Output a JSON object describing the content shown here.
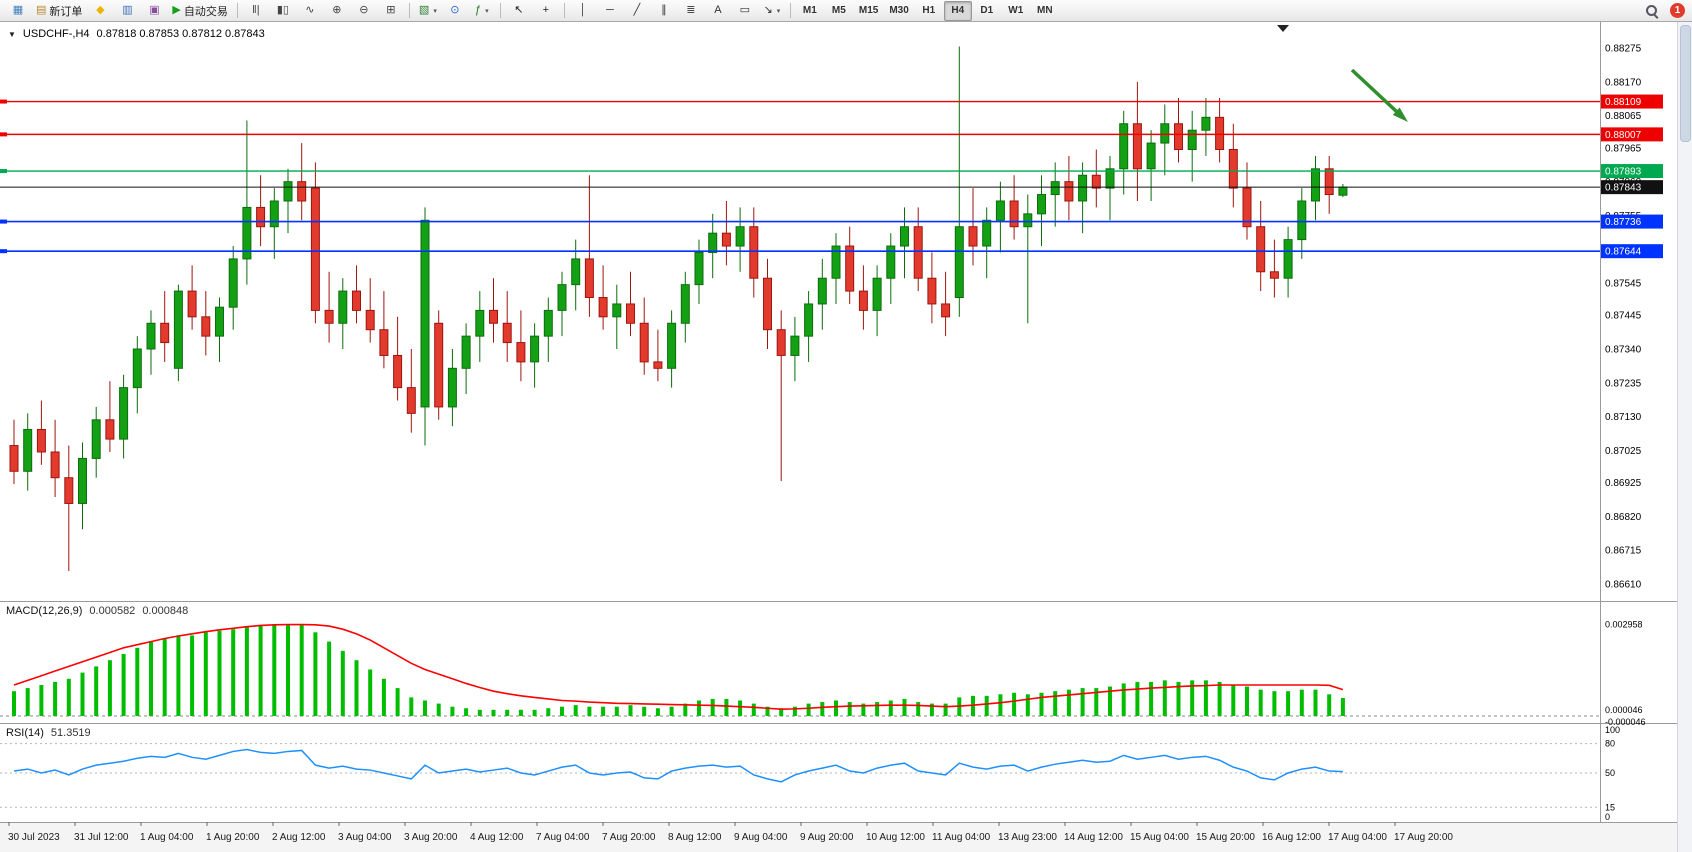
{
  "toolbar": {
    "groups": [
      {
        "items": [
          {
            "name": "new-chart",
            "glyph": "▦",
            "color": "#3f7fbf"
          },
          {
            "name": "new-order",
            "glyph": "▤",
            "color": "#b58a2f",
            "label": "新订单"
          },
          {
            "name": "metaeditor",
            "glyph": "◆",
            "color": "#eeb207"
          },
          {
            "name": "profiles",
            "glyph": "▥",
            "color": "#3b6fb5"
          },
          {
            "name": "history",
            "glyph": "▣",
            "color": "#8a4d9e"
          },
          {
            "name": "autotrading",
            "glyph": "▶",
            "color": "#18a018",
            "label": "自动交易"
          }
        ]
      },
      {
        "items": [
          {
            "name": "bars-chart",
            "glyph": "‖|",
            "color": "#444"
          },
          {
            "name": "candlestick-chart",
            "glyph": "▮▯",
            "color": "#444"
          },
          {
            "name": "line-chart",
            "glyph": "∿",
            "color": "#444"
          },
          {
            "name": "zoom-in",
            "glyph": "⊕",
            "color": "#444"
          },
          {
            "name": "zoom-out",
            "glyph": "⊖",
            "color": "#444"
          },
          {
            "name": "tile-windows",
            "glyph": "⊞",
            "color": "#444"
          }
        ]
      },
      {
        "items": [
          {
            "name": "new-window",
            "glyph": "▧",
            "color": "#2e7d32",
            "caret": true
          },
          {
            "name": "clock",
            "glyph": "⊙",
            "color": "#2266cc"
          },
          {
            "name": "indicators",
            "glyph": "ƒ",
            "color": "#1a7a1a",
            "caret": true
          }
        ]
      },
      {
        "items": [
          {
            "name": "cursor",
            "glyph": "↖",
            "color": "#222"
          },
          {
            "name": "crosshair",
            "glyph": "+",
            "color": "#222"
          }
        ]
      },
      {
        "items": [
          {
            "name": "vertical-line",
            "glyph": "│",
            "color": "#333"
          },
          {
            "name": "horizontal-line",
            "glyph": "─",
            "color": "#333"
          },
          {
            "name": "trendline",
            "glyph": "╱",
            "color": "#333"
          },
          {
            "name": "channel",
            "glyph": "∥",
            "color": "#333"
          },
          {
            "name": "fibonacci",
            "glyph": "≣",
            "color": "#333"
          },
          {
            "name": "text",
            "glyph": "A",
            "color": "#333"
          },
          {
            "name": "label",
            "glyph": "▭",
            "color": "#333"
          },
          {
            "name": "arrows",
            "glyph": "↘",
            "color": "#333",
            "caret": true
          }
        ]
      }
    ],
    "timeframes": [
      "M1",
      "M5",
      "M15",
      "M30",
      "H1",
      "H4",
      "D1",
      "W1",
      "MN"
    ],
    "active_timeframe": "H4",
    "notification_count": "1"
  },
  "chart": {
    "collapse_glyph": "▼",
    "symbol_label": "USDCHF-,H4",
    "ohlc": "0.87818 0.87853 0.87812 0.87843",
    "price_labels": [
      "0.88275",
      "0.88170",
      "0.88065",
      "0.87965",
      "0.87860",
      "0.87755",
      "0.87650",
      "0.87545",
      "0.87445",
      "0.87340",
      "0.87235",
      "0.87130",
      "0.87025",
      "0.86925",
      "0.86820",
      "0.86715",
      "0.86610"
    ],
    "time_labels": [
      "30 Jul 2023",
      "31 Jul 12:00",
      "1 Aug 04:00",
      "1 Aug 20:00",
      "2 Aug 12:00",
      "3 Aug 04:00",
      "3 Aug 20:00",
      "4 Aug 12:00",
      "7 Aug 04:00",
      "7 Aug 20:00",
      "8 Aug 12:00",
      "9 Aug 04:00",
      "9 Aug 20:00",
      "10 Aug 12:00",
      "11 Aug 04:00",
      "13 Aug 23:00",
      "14 Aug 12:00",
      "15 Aug 04:00",
      "15 Aug 20:00",
      "16 Aug 12:00",
      "17 Aug 04:00",
      "17 Aug 20:00"
    ],
    "colors": {
      "bull": "#14a014",
      "bull_border": "#0b6e0b",
      "bear": "#e23b2e",
      "bear_border": "#9e150f",
      "macd_histogram": "#00bd00",
      "macd_signal": "#ff0000",
      "rsi_line": "#1e90ff",
      "arrow": "#2f8f2f",
      "current_price": "#111111"
    }
  },
  "macd": {
    "label": "MACD(12,26,9)",
    "value_macd": "0.000582",
    "value_signal": "0.000848",
    "axis_labels": [
      "0.002958",
      "0.000046",
      "-0.000046"
    ]
  },
  "rsi": {
    "label": "RSI(14)",
    "value": "51.3519",
    "axis_labels": [
      "100",
      "80",
      "50",
      "15",
      "0"
    ],
    "levels": [
      80,
      50,
      15
    ]
  },
  "chart_data": {
    "type": "candlestick",
    "symbol": "USDCHF",
    "timeframe": "H4",
    "title": "USDCHF-,H4",
    "ohlc_current": {
      "open": 0.87818,
      "high": 0.87853,
      "low": 0.87812,
      "close": 0.87843
    },
    "price_range": [
      0.8656,
      0.8835
    ],
    "note": "candle values are price*10000, order [open,high,low,close]",
    "candles": [
      [
        8704,
        8712,
        8692,
        8696
      ],
      [
        8696,
        8714,
        8690,
        8709
      ],
      [
        8709,
        8718,
        8698,
        8702
      ],
      [
        8702,
        8712,
        8688,
        8694
      ],
      [
        8694,
        8704,
        8665,
        8686
      ],
      [
        8686,
        8705,
        8678,
        8700
      ],
      [
        8700,
        8716,
        8694,
        8712
      ],
      [
        8712,
        8724,
        8702,
        8706
      ],
      [
        8706,
        8726,
        8700,
        8722
      ],
      [
        8722,
        8738,
        8714,
        8734
      ],
      [
        8734,
        8746,
        8726,
        8742
      ],
      [
        8742,
        8752,
        8730,
        8736
      ],
      [
        8728,
        8754,
        8724,
        8752
      ],
      [
        8752,
        8760,
        8740,
        8744
      ],
      [
        8744,
        8752,
        8732,
        8738
      ],
      [
        8738,
        8750,
        8730,
        8747
      ],
      [
        8747,
        8766,
        8740,
        8762
      ],
      [
        8762,
        8805,
        8754,
        8778
      ],
      [
        8778,
        8788,
        8766,
        8772
      ],
      [
        8772,
        8784,
        8762,
        8780
      ],
      [
        8780,
        8790,
        8770,
        8786
      ],
      [
        8786,
        8798,
        8774,
        8780
      ],
      [
        8784,
        8792,
        8742,
        8746
      ],
      [
        8746,
        8758,
        8736,
        8742
      ],
      [
        8742,
        8756,
        8734,
        8752
      ],
      [
        8752,
        8760,
        8742,
        8746
      ],
      [
        8746,
        8756,
        8736,
        8740
      ],
      [
        8740,
        8752,
        8728,
        8732
      ],
      [
        8732,
        8744,
        8718,
        8722
      ],
      [
        8722,
        8734,
        8708,
        8714
      ],
      [
        8716,
        8778,
        8704,
        8774
      ],
      [
        8742,
        8746,
        8712,
        8716
      ],
      [
        8716,
        8734,
        8710,
        8728
      ],
      [
        8728,
        8742,
        8720,
        8738
      ],
      [
        8738,
        8752,
        8730,
        8746
      ],
      [
        8746,
        8756,
        8736,
        8742
      ],
      [
        8742,
        8752,
        8730,
        8736
      ],
      [
        8736,
        8746,
        8724,
        8730
      ],
      [
        8730,
        8742,
        8722,
        8738
      ],
      [
        8738,
        8750,
        8730,
        8746
      ],
      [
        8746,
        8758,
        8738,
        8754
      ],
      [
        8754,
        8768,
        8746,
        8762
      ],
      [
        8762,
        8788,
        8744,
        8750
      ],
      [
        8750,
        8760,
        8740,
        8744
      ],
      [
        8744,
        8754,
        8734,
        8748
      ],
      [
        8748,
        8758,
        8738,
        8742
      ],
      [
        8742,
        8750,
        8726,
        8730
      ],
      [
        8730,
        8740,
        8724,
        8728
      ],
      [
        8728,
        8746,
        8722,
        8742
      ],
      [
        8742,
        8758,
        8736,
        8754
      ],
      [
        8754,
        8768,
        8748,
        8764
      ],
      [
        8764,
        8776,
        8756,
        8770
      ],
      [
        8770,
        8780,
        8760,
        8766
      ],
      [
        8766,
        8778,
        8758,
        8772
      ],
      [
        8772,
        8778,
        8750,
        8756
      ],
      [
        8756,
        8762,
        8734,
        8740
      ],
      [
        8740,
        8746,
        8693,
        8732
      ],
      [
        8732,
        8744,
        8724,
        8738
      ],
      [
        8738,
        8752,
        8730,
        8748
      ],
      [
        8748,
        8762,
        8740,
        8756
      ],
      [
        8756,
        8770,
        8748,
        8766
      ],
      [
        8766,
        8772,
        8748,
        8752
      ],
      [
        8752,
        8760,
        8740,
        8746
      ],
      [
        8746,
        8760,
        8738,
        8756
      ],
      [
        8756,
        8770,
        8748,
        8766
      ],
      [
        8766,
        8778,
        8756,
        8772
      ],
      [
        8772,
        8778,
        8752,
        8756
      ],
      [
        8756,
        8764,
        8742,
        8748
      ],
      [
        8748,
        8758,
        8738,
        8744
      ],
      [
        8750,
        8828,
        8744,
        8772
      ],
      [
        8772,
        8784,
        8760,
        8766
      ],
      [
        8766,
        8778,
        8756,
        8774
      ],
      [
        8774,
        8786,
        8764,
        8780
      ],
      [
        8780,
        8788,
        8768,
        8772
      ],
      [
        8772,
        8782,
        8742,
        8776
      ],
      [
        8776,
        8788,
        8766,
        8782
      ],
      [
        8782,
        8792,
        8772,
        8786
      ],
      [
        8786,
        8794,
        8774,
        8780
      ],
      [
        8780,
        8792,
        8770,
        8788
      ],
      [
        8788,
        8796,
        8778,
        8784
      ],
      [
        8784,
        8794,
        8774,
        8790
      ],
      [
        8790,
        8808,
        8782,
        8804
      ],
      [
        8804,
        8817,
        8780,
        8790
      ],
      [
        8790,
        8802,
        8780,
        8798
      ],
      [
        8798,
        8810,
        8788,
        8804
      ],
      [
        8804,
        8812,
        8792,
        8796
      ],
      [
        8796,
        8808,
        8786,
        8802
      ],
      [
        8802,
        8812,
        8794,
        8806
      ],
      [
        8806,
        8812,
        8792,
        8796
      ],
      [
        8796,
        8804,
        8778,
        8784
      ],
      [
        8784,
        8792,
        8768,
        8772
      ],
      [
        8772,
        8780,
        8752,
        8758
      ],
      [
        8758,
        8768,
        8750,
        8756
      ],
      [
        8756,
        8772,
        8750,
        8768
      ],
      [
        8768,
        8784,
        8762,
        8780
      ],
      [
        8780,
        8794,
        8774,
        8790
      ],
      [
        8790,
        8794,
        8776,
        8782
      ],
      [
        8781.8,
        8785.3,
        8781.2,
        8784.3
      ]
    ],
    "horizontal_lines": [
      {
        "price": 0.88109,
        "color": "#ee0000"
      },
      {
        "price": 0.88007,
        "color": "#ee0000"
      },
      {
        "price": 0.87893,
        "color": "#00a84f"
      },
      {
        "price": 0.87736,
        "color": "#0033ff"
      },
      {
        "price": 0.87644,
        "color": "#0033ff"
      }
    ],
    "current_price": 0.87843,
    "annotations": [
      {
        "type": "arrow",
        "color": "#2f8f2f",
        "direction": "down-right",
        "area": "upper-right near 0.88109 line"
      }
    ],
    "indicators": {
      "macd": {
        "params": "12,26,9",
        "scale": "values*0.0001",
        "max_label": 0.002958,
        "histogram": [
          8,
          9,
          10,
          11,
          12,
          14,
          16,
          18,
          20,
          22,
          24,
          25,
          26,
          26,
          27,
          27.5,
          28,
          29,
          29.3,
          29.5,
          29.5,
          29.3,
          27,
          24,
          21,
          18,
          15,
          12,
          9,
          6,
          5,
          4,
          3,
          2.5,
          2,
          2,
          2,
          2,
          2,
          2.5,
          3,
          3.5,
          3,
          3,
          3,
          3.5,
          3,
          2.5,
          3,
          4,
          5,
          5.5,
          5.5,
          5,
          4,
          3,
          2.5,
          3,
          4,
          4.5,
          5,
          4.5,
          4,
          4.5,
          5,
          5.5,
          4.5,
          4,
          4,
          6,
          6.5,
          6.5,
          7,
          7.5,
          7,
          7.5,
          8,
          8.5,
          9,
          9,
          9.5,
          10.5,
          11,
          11,
          11.5,
          11,
          11.5,
          11.5,
          11,
          10,
          9.5,
          8.5,
          8,
          8,
          8.5,
          8.5,
          7,
          5.8
        ],
        "signal": [
          10,
          11.5,
          13,
          14.5,
          16,
          17.5,
          19,
          20.5,
          22,
          23,
          24,
          25,
          25.8,
          26.5,
          27.2,
          27.8,
          28.3,
          28.8,
          29.2,
          29.4,
          29.5,
          29.5,
          29.4,
          29,
          28,
          26.5,
          24.5,
          22,
          19.5,
          17,
          15,
          13.5,
          12,
          10.5,
          9.2,
          8,
          7.2,
          6.5,
          6,
          5.5,
          5,
          4.8,
          4.5,
          4.3,
          4.1,
          4,
          3.9,
          3.8,
          3.7,
          3.6,
          3.5,
          3.4,
          3.2,
          3,
          2.8,
          2.5,
          2.2,
          2.3,
          2.5,
          2.8,
          3,
          3.2,
          3.3,
          3.4,
          3.5,
          3.5,
          3.4,
          3.2,
          3,
          3.2,
          3.5,
          3.9,
          4.3,
          4.8,
          5.4,
          6,
          6.4,
          6.8,
          7.2,
          7.6,
          8,
          8.4,
          8.7,
          9,
          9.2,
          9.5,
          9.7,
          9.8,
          10,
          10,
          10,
          10,
          10,
          10,
          10,
          10,
          9.9,
          8.5
        ]
      },
      "rsi": {
        "period": 14,
        "current": 51.3519,
        "range": [
          0,
          100
        ],
        "values": [
          52,
          54,
          50,
          53,
          48,
          54,
          58,
          60,
          62,
          65,
          67,
          66,
          70,
          66,
          64,
          68,
          72,
          74,
          71,
          70,
          72,
          73,
          58,
          55,
          57,
          54,
          53,
          50,
          47,
          44,
          58,
          50,
          52,
          54,
          51,
          53,
          55,
          50,
          48,
          52,
          56,
          58,
          50,
          48,
          50,
          51,
          45,
          44,
          52,
          55,
          57,
          58,
          56,
          57,
          48,
          44,
          41,
          48,
          52,
          55,
          58,
          52,
          50,
          55,
          58,
          60,
          52,
          50,
          48,
          60,
          56,
          54,
          57,
          58,
          52,
          56,
          59,
          61,
          63,
          61,
          62,
          68,
          64,
          66,
          68,
          64,
          66,
          67,
          63,
          56,
          52,
          45,
          43,
          50,
          54,
          56,
          52,
          51.35
        ]
      }
    }
  }
}
